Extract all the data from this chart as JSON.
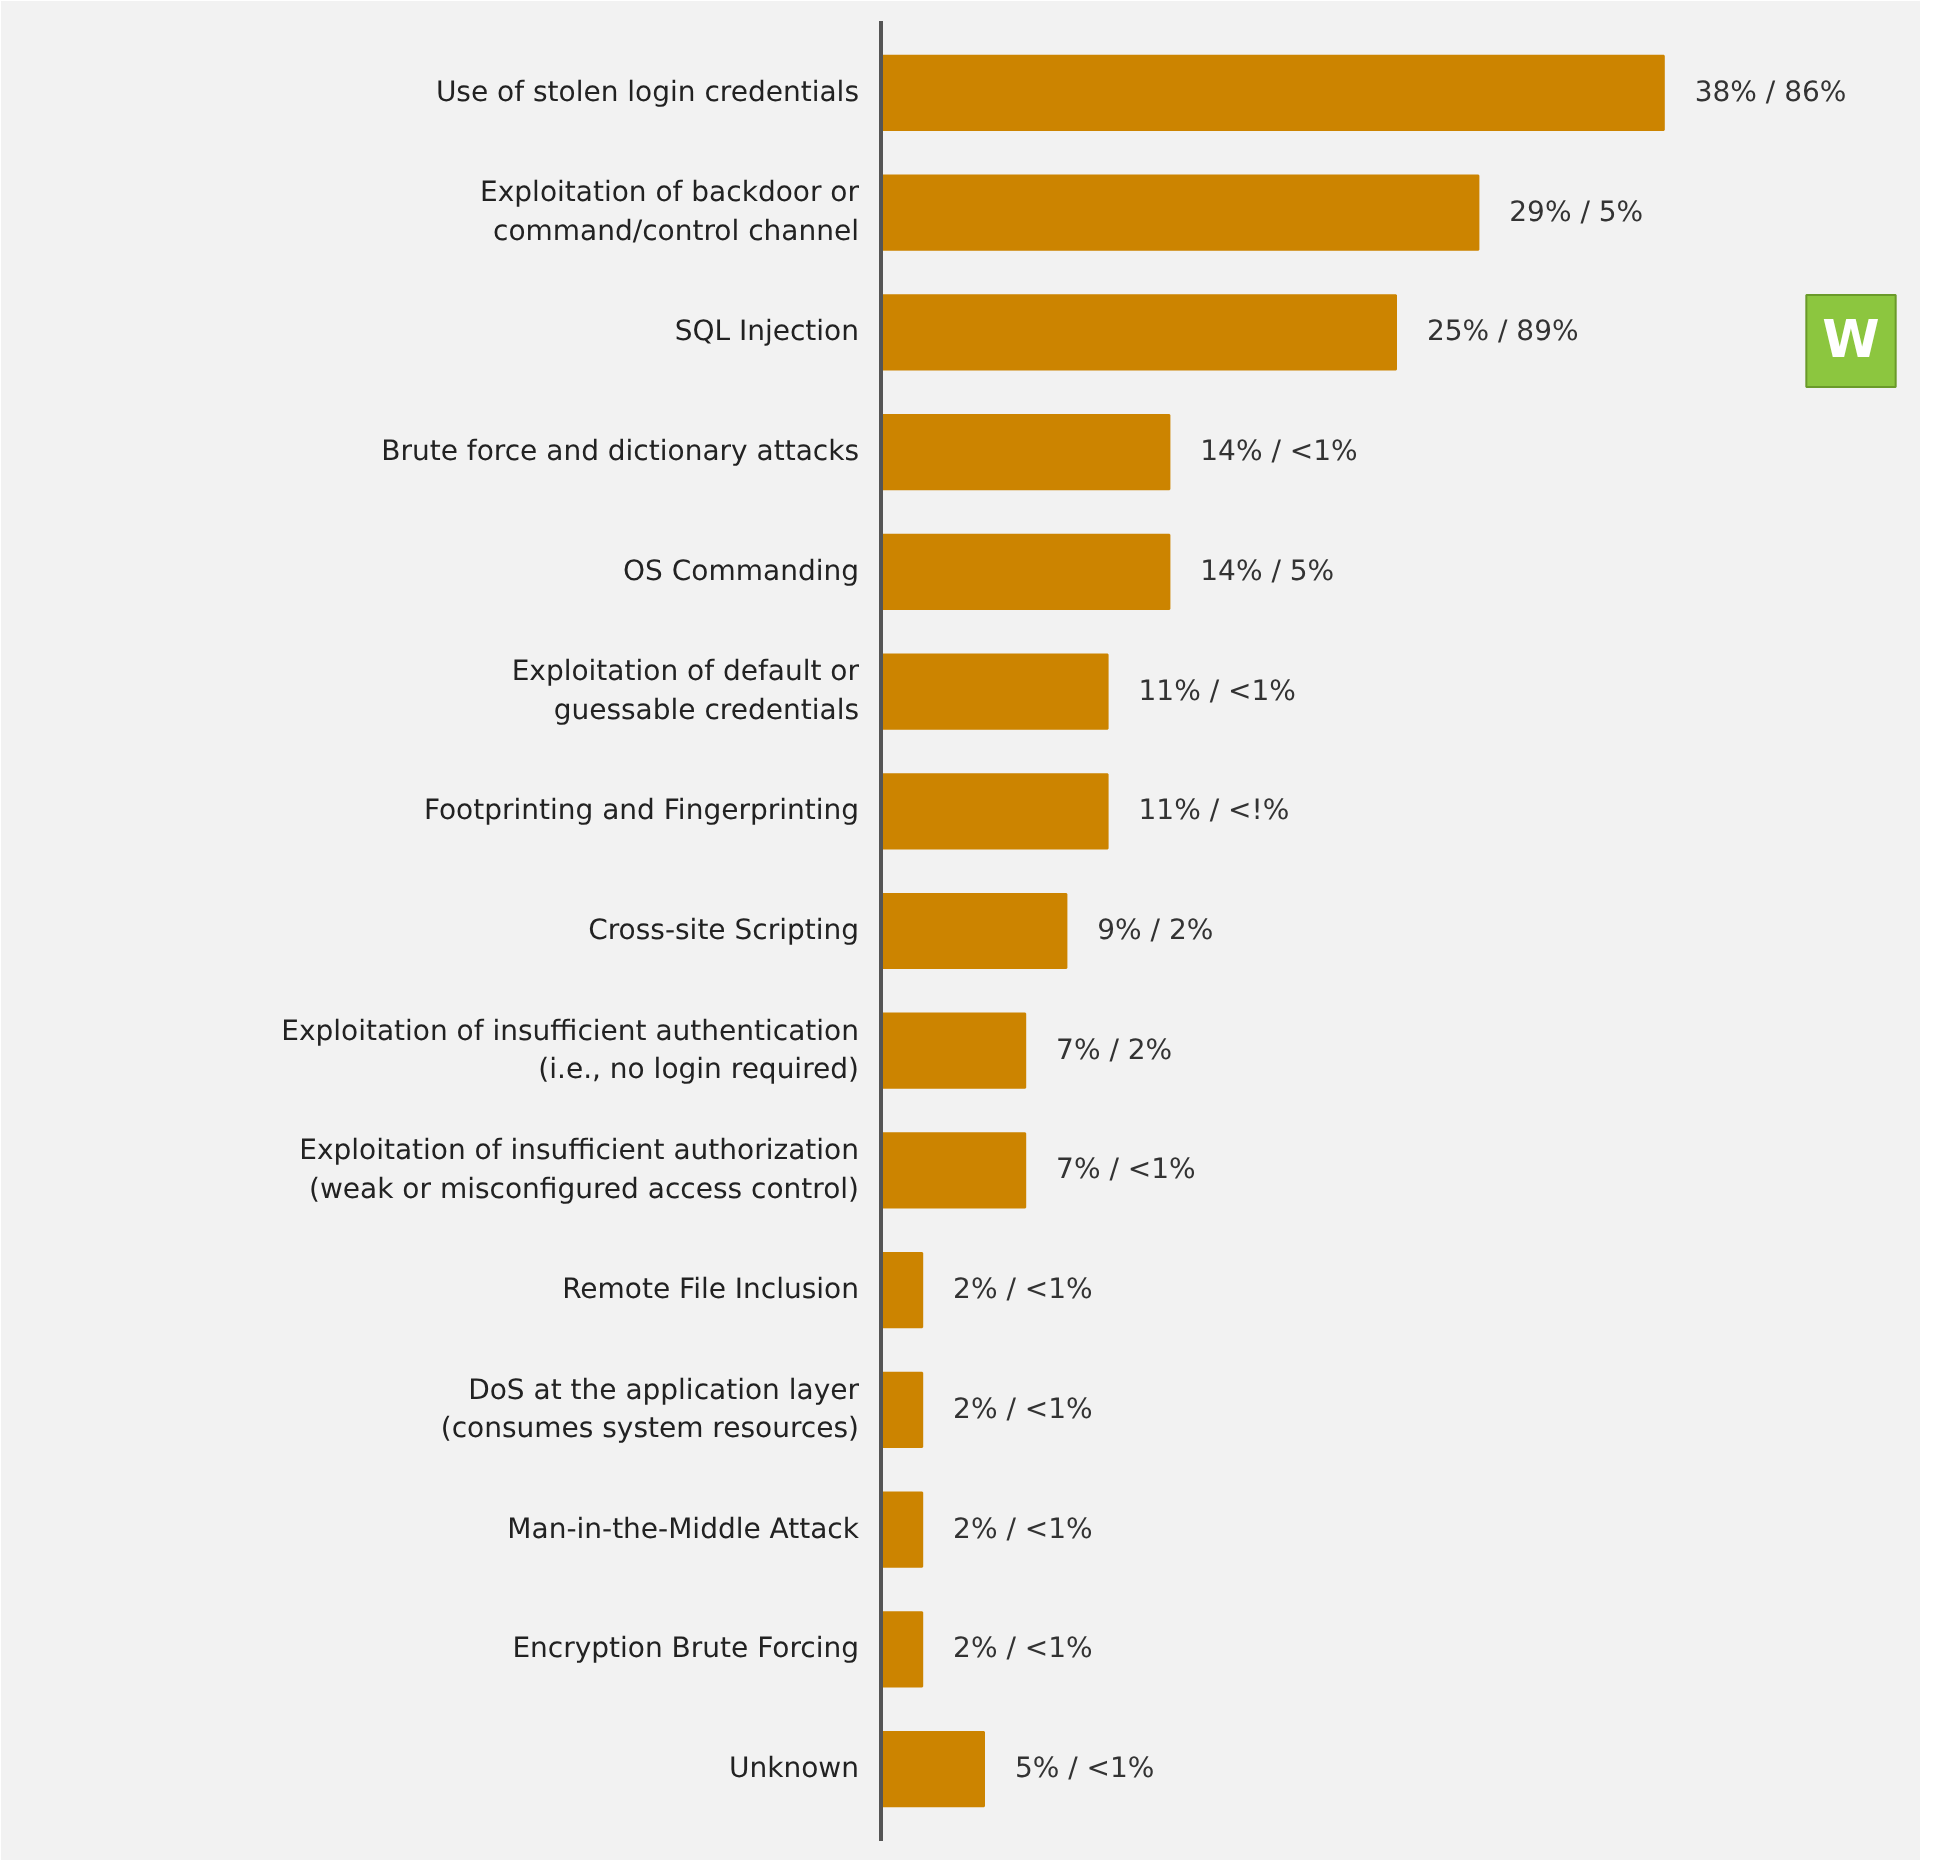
{
  "chart_data": {
    "type": "bar",
    "orientation": "horizontal",
    "categories": [
      "Use of stolen login credentials",
      "Exploitation of backdoor or\ncommand/control channel",
      "SQL Injection",
      "Brute force and dictionary attacks",
      "OS Commanding",
      "Exploitation of default or\nguessable credentials",
      "Footprinting and Fingerprinting",
      "Cross-site Scripting",
      "Exploitation of insufficient authentication\n(i.e., no login required)",
      "Exploitation of insufficient authorization\n(weak or misconfigured access control)",
      "Remote File Inclusion",
      "DoS at the application layer\n(consumes system resources)",
      "Man-in-the-Middle Attack",
      "Encryption Brute Forcing",
      "Unknown"
    ],
    "values": [
      38,
      29,
      25,
      14,
      14,
      11,
      11,
      9,
      7,
      7,
      2,
      2,
      2,
      2,
      5
    ],
    "value_labels": [
      "38% / 86%",
      "29% / 5%",
      "25% / 89%",
      "14% / <1%",
      "14% / 5%",
      "11% / <1%",
      "11% / <!%",
      "9% / 2%",
      "7% / 2%",
      "7% / <1%",
      "2% / <1%",
      "2% / <1%",
      "2% / <1%",
      "2% / <1%",
      "5% / <1%"
    ],
    "color": "#cc8400",
    "xlim": [
      0,
      50
    ],
    "tick_labels": "y",
    "grid": false,
    "annotations": [
      "W"
    ]
  }
}
